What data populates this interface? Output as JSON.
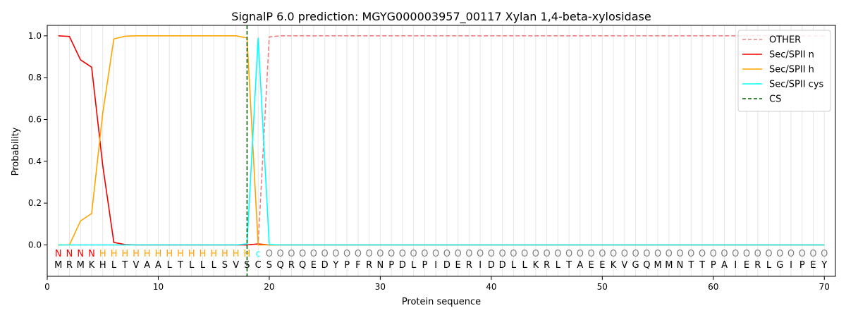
{
  "chart_data": {
    "type": "line",
    "title": "SignalP 6.0 prediction: MGYG000003957_00117 Xylan 1,4-beta-xylosidase",
    "xlabel": "Protein sequence",
    "ylabel": "Probability",
    "xlim": [
      0,
      71
    ],
    "ylim": [
      -0.15,
      1.05
    ],
    "xticks": [
      0,
      10,
      20,
      30,
      40,
      50,
      60,
      70
    ],
    "yticks": [
      0.0,
      0.2,
      0.4,
      0.6,
      0.8,
      1.0
    ],
    "grid": "vertical lines at each residue",
    "legend_position": "top-right",
    "sequence": [
      "M",
      "R",
      "M",
      "K",
      "H",
      "L",
      "T",
      "V",
      "A",
      "A",
      "L",
      "T",
      "L",
      "L",
      "L",
      "S",
      "V",
      "S",
      "C",
      "S",
      "Q",
      "R",
      "Q",
      "E",
      "D",
      "Y",
      "P",
      "F",
      "R",
      "N",
      "P",
      "D",
      "L",
      "P",
      "I",
      "D",
      "E",
      "R",
      "I",
      "D",
      "D",
      "L",
      "L",
      "K",
      "R",
      "L",
      "T",
      "A",
      "E",
      "E",
      "K",
      "V",
      "G",
      "Q",
      "M",
      "M",
      "N",
      "T",
      "T",
      "P",
      "A",
      "I",
      "E",
      "R",
      "L",
      "G",
      "I",
      "P",
      "E",
      "Y"
    ],
    "region_labels": [
      "N",
      "N",
      "N",
      "N",
      "H",
      "H",
      "H",
      "H",
      "H",
      "H",
      "H",
      "H",
      "H",
      "H",
      "H",
      "H",
      "H",
      "H",
      "c",
      "O",
      "O",
      "O",
      "O",
      "O",
      "O",
      "O",
      "O",
      "O",
      "O",
      "O",
      "O",
      "O",
      "O",
      "O",
      "O",
      "O",
      "O",
      "O",
      "O",
      "O",
      "O",
      "O",
      "O",
      "O",
      "O",
      "O",
      "O",
      "O",
      "O",
      "O",
      "O",
      "O",
      "O",
      "O",
      "O",
      "O",
      "O",
      "O",
      "O",
      "O",
      "O",
      "O",
      "O",
      "O",
      "O",
      "O",
      "O",
      "O",
      "O",
      "O"
    ],
    "region_colors": {
      "N": "#ff0000",
      "H": "#ffa500",
      "c": "#00ffff",
      "O": "#808080"
    },
    "cleavage_site": 18,
    "series": [
      {
        "name": "OTHER",
        "color": "#f08080",
        "dash": "dashed",
        "values": [
          0,
          0,
          0,
          0,
          0,
          0,
          0,
          0,
          0,
          0,
          0,
          0,
          0,
          0,
          0,
          0,
          0,
          0,
          0.005,
          0.995,
          1,
          1,
          1,
          1,
          1,
          1,
          1,
          1,
          1,
          1,
          1,
          1,
          1,
          1,
          1,
          1,
          1,
          1,
          1,
          1,
          1,
          1,
          1,
          1,
          1,
          1,
          1,
          1,
          1,
          1,
          1,
          1,
          1,
          1,
          1,
          1,
          1,
          1,
          1,
          1,
          1,
          1,
          1,
          1,
          1,
          1,
          1,
          1,
          1,
          1
        ]
      },
      {
        "name": "Sec/SPII n",
        "color": "#ee0000",
        "dash": "solid",
        "values": [
          1.0,
          0.997,
          0.885,
          0.85,
          0.38,
          0.012,
          0.002,
          0,
          0,
          0,
          0,
          0,
          0,
          0,
          0,
          0,
          0,
          0,
          0.005,
          0,
          0,
          0,
          0,
          0,
          0,
          0,
          0,
          0,
          0,
          0,
          0,
          0,
          0,
          0,
          0,
          0,
          0,
          0,
          0,
          0,
          0,
          0,
          0,
          0,
          0,
          0,
          0,
          0,
          0,
          0,
          0,
          0,
          0,
          0,
          0,
          0,
          0,
          0,
          0,
          0,
          0,
          0,
          0,
          0,
          0,
          0,
          0,
          0,
          0,
          0
        ]
      },
      {
        "name": "Sec/SPII h",
        "color": "#ffa500",
        "dash": "solid",
        "values": [
          0,
          0,
          0.115,
          0.15,
          0.63,
          0.985,
          0.998,
          1,
          1,
          1,
          1,
          1,
          1,
          1,
          1,
          1,
          1,
          0.99,
          0,
          0,
          0,
          0,
          0,
          0,
          0,
          0,
          0,
          0,
          0,
          0,
          0,
          0,
          0,
          0,
          0,
          0,
          0,
          0,
          0,
          0,
          0,
          0,
          0,
          0,
          0,
          0,
          0,
          0,
          0,
          0,
          0,
          0,
          0,
          0,
          0,
          0,
          0,
          0,
          0,
          0,
          0,
          0,
          0,
          0,
          0,
          0,
          0,
          0,
          0,
          0
        ]
      },
      {
        "name": "Sec/SPII cys",
        "color": "#00ffff",
        "dash": "solid",
        "values": [
          0,
          0,
          0,
          0,
          0,
          0,
          0,
          0,
          0,
          0,
          0,
          0,
          0,
          0,
          0,
          0,
          0,
          0.005,
          0.99,
          0.002,
          0,
          0,
          0,
          0,
          0,
          0,
          0,
          0,
          0,
          0,
          0,
          0,
          0,
          0,
          0,
          0,
          0,
          0,
          0,
          0,
          0,
          0,
          0,
          0,
          0,
          0,
          0,
          0,
          0,
          0,
          0,
          0,
          0,
          0,
          0,
          0,
          0,
          0,
          0,
          0,
          0,
          0,
          0,
          0,
          0,
          0,
          0,
          0,
          0,
          0
        ]
      }
    ],
    "cs_legend": {
      "name": "CS",
      "color": "#006400",
      "dash": "dashed"
    }
  }
}
